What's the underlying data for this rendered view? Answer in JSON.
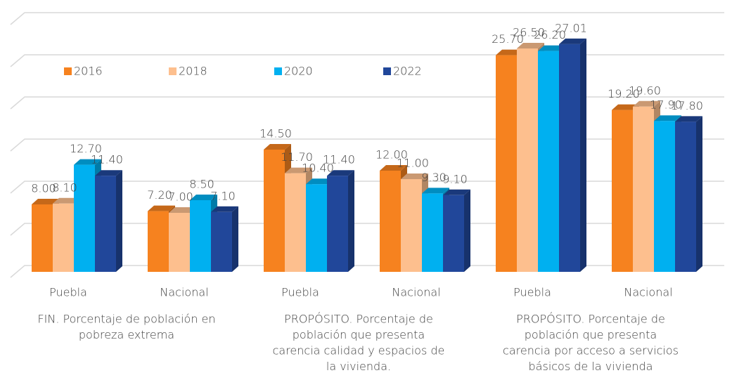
{
  "chart_data": {
    "type": "bar3d",
    "categories": [
      "Puebla",
      "Nacional",
      "Puebla",
      "Nacional",
      "Puebla",
      "Nacional"
    ],
    "group_labels": [
      [
        "FIN. Porcentaje de población en",
        "pobreza extrema"
      ],
      [
        "PROPÓSITO. Porcentaje de",
        "población que presenta",
        "carencia calidad y espacios de",
        "la vivienda."
      ],
      [
        "PROPÓSITO. Porcentaje de",
        "población que presenta",
        "carencia por acceso a servicios",
        "básicos de la vivienda"
      ]
    ],
    "series": [
      {
        "name": "2016",
        "color": "#f6821f",
        "values": [
          8.0,
          7.2,
          14.5,
          12.0,
          25.7,
          19.2
        ],
        "value_labels": [
          "8.00",
          "7.20",
          "14.50",
          "12.00",
          "25.70",
          "19.20"
        ]
      },
      {
        "name": "2018",
        "color": "#fdbf8e",
        "values": [
          8.1,
          7.0,
          11.7,
          11.0,
          26.5,
          19.6
        ],
        "value_labels": [
          "8.10",
          "7.00",
          "11.70",
          "11.00",
          "26.50",
          "19.60"
        ]
      },
      {
        "name": "2020",
        "color": "#00b0f0",
        "values": [
          12.7,
          8.5,
          10.4,
          9.3,
          26.2,
          17.9
        ],
        "value_labels": [
          "12.70",
          "8.50",
          "10.40",
          "9.30",
          "26.20",
          "17.90"
        ]
      },
      {
        "name": "2022",
        "color": "#21479a",
        "values": [
          11.4,
          7.1,
          11.4,
          9.1,
          27.01,
          17.8
        ],
        "value_labels": [
          "11.40",
          "7.10",
          "11.40",
          "9.10",
          "27.01",
          "17.80"
        ]
      }
    ],
    "ylim": [
      0,
      30
    ],
    "yticks": [
      0,
      5,
      10,
      15,
      20,
      25,
      30
    ],
    "grid": true,
    "legend": "top-left"
  }
}
